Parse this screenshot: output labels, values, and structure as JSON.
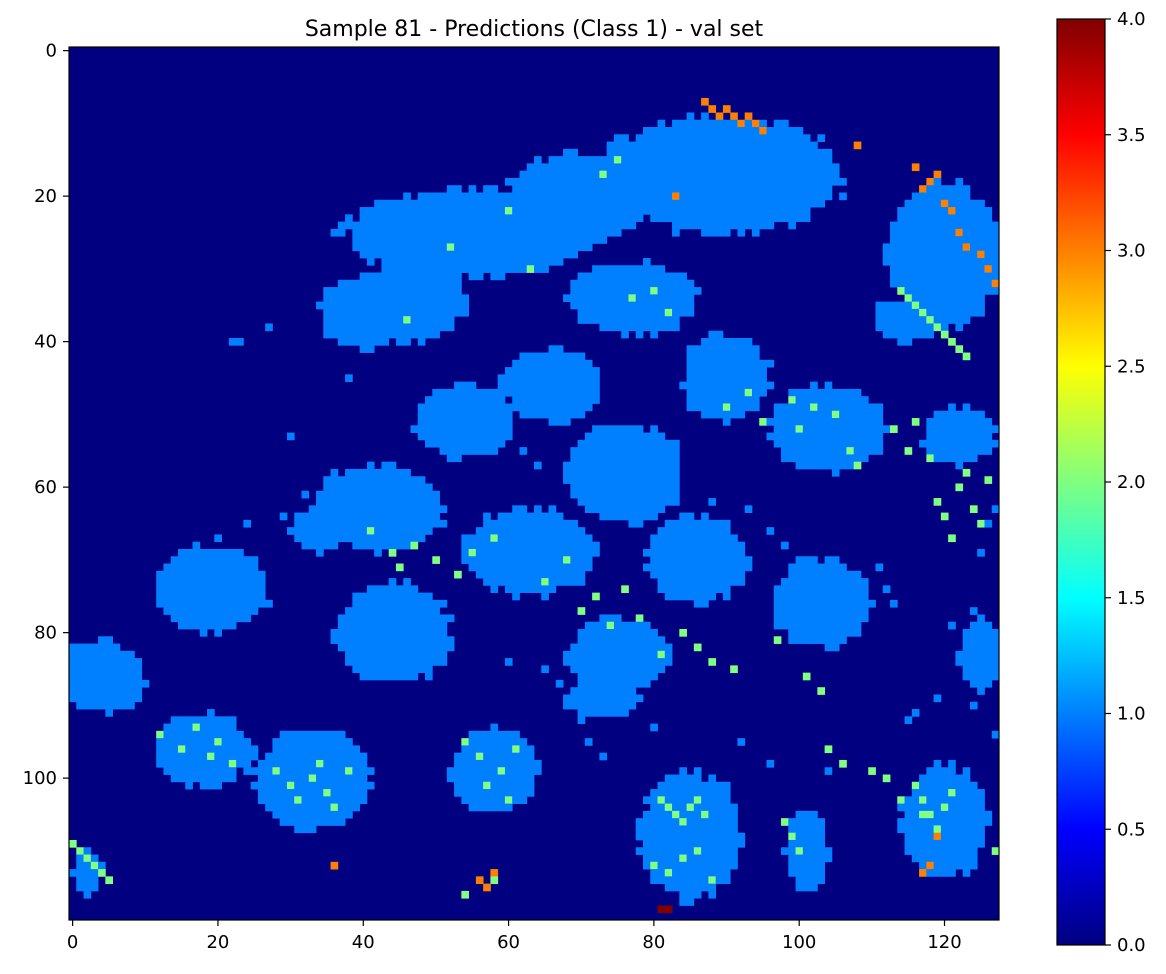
{
  "chart_data": {
    "type": "heatmap",
    "title": "Sample 81 - Predictions (Class 1) - val set",
    "xlabel": "",
    "ylabel": "",
    "grid": false,
    "shape": [
      120,
      128
    ],
    "x_ticks": [
      0,
      20,
      40,
      60,
      80,
      100,
      120
    ],
    "x_tick_labels": [
      "0",
      "20",
      "40",
      "60",
      "80",
      "100",
      "120"
    ],
    "y_ticks": [
      0,
      20,
      40,
      60,
      80,
      100
    ],
    "y_tick_labels": [
      "0",
      "20",
      "40",
      "60",
      "80",
      "100"
    ],
    "colormap": "jet",
    "colorbar": {
      "range": [
        0.0,
        4.0
      ],
      "ticks": [
        0.0,
        0.5,
        1.0,
        1.5,
        2.0,
        2.5,
        3.0,
        3.5,
        4.0
      ],
      "tick_labels": [
        "0.0",
        "0.5",
        "1.0",
        "1.5",
        "2.0",
        "2.5",
        "3.0",
        "3.5",
        "4.0"
      ],
      "placement": "right"
    },
    "value_colors": {
      "0": "#000080",
      "1": "#0080ff",
      "2": "#80ff80",
      "3": "#ff8000",
      "4": "#800000"
    },
    "regions": [
      {
        "value": 1,
        "cx": 89,
        "cy": 17,
        "rx": 17,
        "ry": 8
      },
      {
        "value": 1,
        "cx": 70,
        "cy": 20,
        "rx": 10,
        "ry": 6
      },
      {
        "value": 1,
        "cx": 55,
        "cy": 25,
        "rx": 18,
        "ry": 6
      },
      {
        "value": 1,
        "cx": 47,
        "cy": 34,
        "rx": 7,
        "ry": 6
      },
      {
        "value": 1,
        "cx": 40,
        "cy": 36,
        "rx": 6,
        "ry": 5
      },
      {
        "value": 1,
        "cx": 77,
        "cy": 34,
        "rx": 9,
        "ry": 5
      },
      {
        "value": 1,
        "cx": 120,
        "cy": 28,
        "rx": 8,
        "ry": 10
      },
      {
        "value": 1,
        "cx": 115,
        "cy": 37,
        "rx": 5,
        "ry": 3
      },
      {
        "value": 1,
        "cx": 66,
        "cy": 46,
        "rx": 7,
        "ry": 5
      },
      {
        "value": 1,
        "cx": 54,
        "cy": 51,
        "rx": 7,
        "ry": 5
      },
      {
        "value": 1,
        "cx": 90,
        "cy": 45,
        "rx": 6,
        "ry": 6
      },
      {
        "value": 1,
        "cx": 104,
        "cy": 52,
        "rx": 8,
        "ry": 6
      },
      {
        "value": 1,
        "cx": 122,
        "cy": 53,
        "rx": 5,
        "ry": 4
      },
      {
        "value": 1,
        "cx": 76,
        "cy": 58,
        "rx": 8,
        "ry": 7
      },
      {
        "value": 1,
        "cx": 42,
        "cy": 63,
        "rx": 9,
        "ry": 6
      },
      {
        "value": 1,
        "cx": 34,
        "cy": 66,
        "rx": 4,
        "ry": 3
      },
      {
        "value": 1,
        "cx": 63,
        "cy": 69,
        "rx": 9,
        "ry": 6
      },
      {
        "value": 1,
        "cx": 86,
        "cy": 70,
        "rx": 7,
        "ry": 6
      },
      {
        "value": 1,
        "cx": 19,
        "cy": 74,
        "rx": 8,
        "ry": 6
      },
      {
        "value": 1,
        "cx": 103,
        "cy": 76,
        "rx": 7,
        "ry": 6
      },
      {
        "value": 1,
        "cx": 44,
        "cy": 80,
        "rx": 8,
        "ry": 7
      },
      {
        "value": 1,
        "cx": 75,
        "cy": 83,
        "rx": 7,
        "ry": 5
      },
      {
        "value": 1,
        "cx": 125,
        "cy": 83,
        "rx": 3,
        "ry": 5
      },
      {
        "value": 1,
        "cx": 4,
        "cy": 86,
        "rx": 6,
        "ry": 5
      },
      {
        "value": 1,
        "cx": 73,
        "cy": 89,
        "rx": 5,
        "ry": 3
      },
      {
        "value": 1,
        "cx": 18,
        "cy": 96,
        "rx": 7,
        "ry": 5
      },
      {
        "value": 1,
        "cx": 33,
        "cy": 100,
        "rx": 8,
        "ry": 7
      },
      {
        "value": 1,
        "cx": 58,
        "cy": 99,
        "rx": 6,
        "ry": 6
      },
      {
        "value": 1,
        "cx": 85,
        "cy": 108,
        "rx": 7,
        "ry": 9
      },
      {
        "value": 1,
        "cx": 101,
        "cy": 110,
        "rx": 3,
        "ry": 6
      },
      {
        "value": 1,
        "cx": 120,
        "cy": 106,
        "rx": 6,
        "ry": 8
      },
      {
        "value": 1,
        "cx": 2,
        "cy": 113,
        "rx": 2,
        "ry": 3
      }
    ],
    "scatter_cells": [
      {
        "value": 2,
        "x": [
          46,
          52,
          60,
          63,
          73,
          75,
          77,
          80,
          82,
          90,
          93,
          95,
          99,
          100,
          102,
          105,
          107,
          108,
          113,
          115,
          116,
          118,
          119,
          120,
          121,
          122,
          123,
          124,
          125,
          126,
          41,
          44,
          45,
          47,
          50,
          53,
          55,
          58,
          65,
          68,
          70,
          72,
          74,
          76,
          78,
          81,
          84,
          86,
          88,
          91,
          97,
          101,
          103,
          104,
          106,
          110,
          112,
          114,
          117,
          127
        ],
        "y": [
          37,
          27,
          22,
          30,
          17,
          15,
          34,
          33,
          36,
          49,
          47,
          51,
          48,
          52,
          49,
          50,
          55,
          57,
          52,
          55,
          51,
          56,
          62,
          64,
          67,
          60,
          58,
          63,
          65,
          59,
          66,
          69,
          71,
          68,
          70,
          72,
          69,
          67,
          73,
          70,
          77,
          75,
          79,
          74,
          78,
          83,
          80,
          82,
          84,
          85,
          81,
          86,
          88,
          96,
          98,
          99,
          100,
          103,
          105,
          110
        ]
      },
      {
        "value": 2,
        "x": [
          12,
          15,
          17,
          19,
          20,
          22,
          28,
          30,
          31,
          33,
          34,
          35,
          36,
          38,
          54,
          56,
          57,
          59,
          60,
          61,
          81,
          82,
          83,
          84,
          85,
          86,
          87,
          98,
          99,
          100,
          116,
          117,
          118,
          119,
          120,
          121,
          0,
          1,
          2,
          3,
          4,
          5,
          54,
          57,
          58,
          80,
          82,
          84,
          86,
          88,
          114,
          115,
          116,
          117,
          118,
          119,
          120,
          121,
          122,
          123
        ],
        "y": [
          94,
          96,
          93,
          97,
          95,
          98,
          99,
          101,
          103,
          100,
          98,
          102,
          104,
          99,
          95,
          97,
          101,
          99,
          103,
          96,
          103,
          104,
          105,
          106,
          104,
          103,
          105,
          106,
          108,
          110,
          101,
          103,
          105,
          107,
          104,
          102,
          109,
          110,
          111,
          112,
          113,
          114,
          116,
          115,
          114,
          112,
          113,
          111,
          110,
          114,
          33,
          34,
          35,
          36,
          37,
          38,
          39,
          40,
          41,
          42
        ]
      },
      {
        "value": 3,
        "x": [
          87,
          88,
          89,
          90,
          91,
          92,
          93,
          94,
          95,
          108,
          116,
          117,
          118,
          119,
          120,
          121,
          122,
          123,
          125,
          126,
          127,
          36,
          56,
          57,
          58,
          83,
          117,
          118,
          119
        ],
        "y": [
          7,
          8,
          9,
          8,
          9,
          10,
          9,
          10,
          11,
          13,
          16,
          19,
          18,
          17,
          21,
          22,
          25,
          27,
          28,
          30,
          32,
          112,
          114,
          115,
          113,
          20,
          113,
          112,
          108
        ]
      },
      {
        "value": 4,
        "x": [
          81,
          82
        ],
        "y": [
          118,
          118
        ]
      }
    ],
    "speckle_cells": [
      {
        "value": 1,
        "x": [
          22,
          23,
          27,
          30,
          38,
          53,
          59,
          62,
          64,
          79,
          88,
          93,
          96,
          98,
          100,
          104,
          111,
          112,
          113,
          121,
          124,
          125,
          126,
          127,
          20,
          24,
          29,
          32,
          36,
          52,
          60,
          65,
          67,
          69,
          70,
          71,
          73,
          80,
          92,
          96,
          104,
          115,
          116,
          119,
          124,
          127
        ],
        "y": [
          40,
          40,
          38,
          53,
          45,
          51,
          54,
          55,
          57,
          58,
          62,
          63,
          66,
          68,
          70,
          72,
          71,
          74,
          76,
          79,
          77,
          69,
          65,
          63,
          67,
          65,
          64,
          61,
          58,
          82,
          84,
          85,
          87,
          88,
          92,
          95,
          97,
          93,
          95,
          98,
          99,
          92,
          91,
          89,
          90,
          94
        ]
      }
    ]
  }
}
